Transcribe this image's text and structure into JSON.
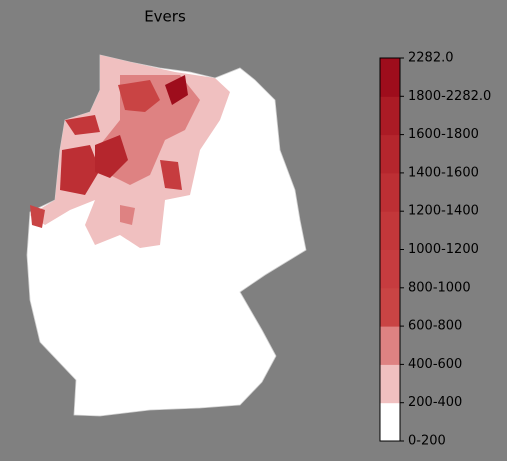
{
  "title": "Evers",
  "colorbar": {
    "labels": [
      "0-200",
      "200-400",
      "400-600",
      "600-800",
      "800-1000",
      "1000-1200",
      "1200-1400",
      "1400-1600",
      "1600-1800",
      "1800-2282.0",
      "2282.0"
    ],
    "colors": [
      "#ffffff",
      "#f0c0c0",
      "#de8282",
      "#c94444",
      "#c63c3f",
      "#c3373a",
      "#bd2f34",
      "#b5262d",
      "#ab1b25",
      "#9e0d1c"
    ]
  }
}
